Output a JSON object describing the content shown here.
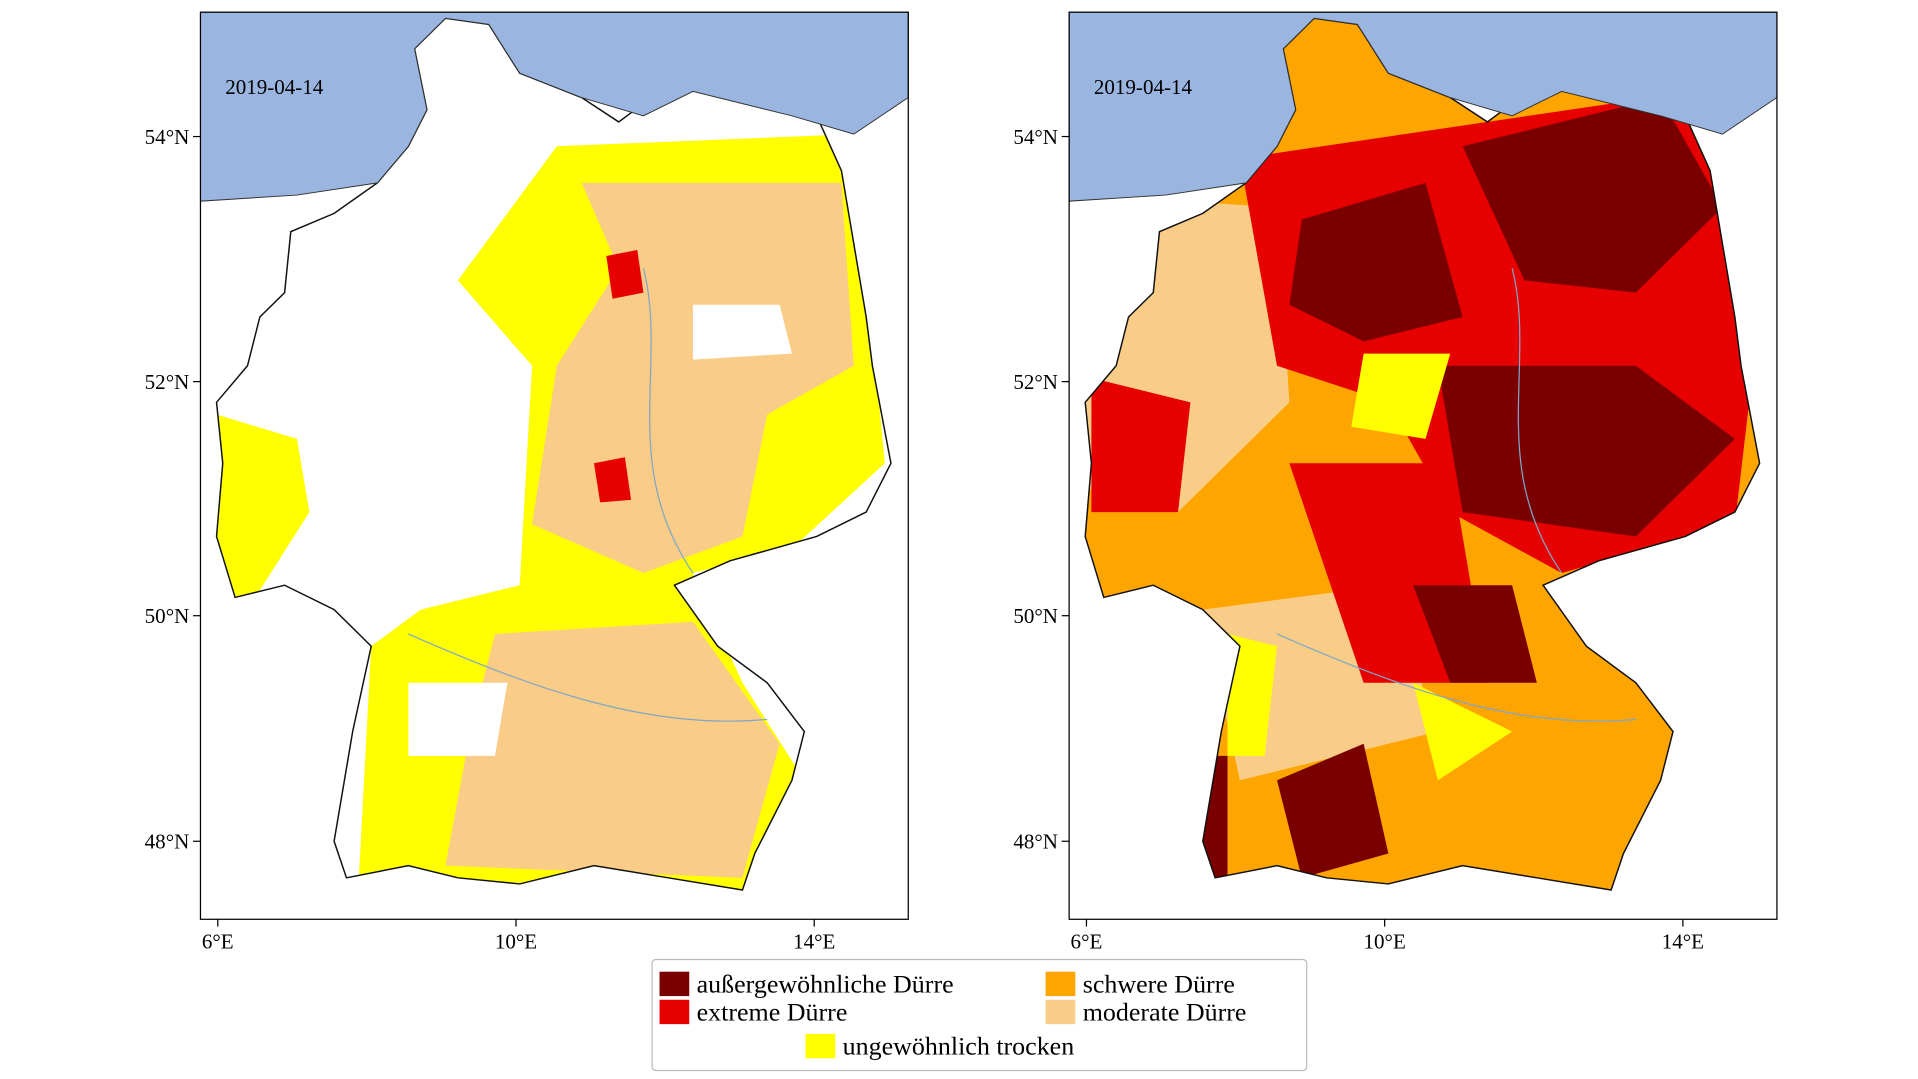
{
  "maps": [
    {
      "date": "2019-04-14",
      "lat_labels": [
        "54°N",
        "52°N",
        "50°N",
        "48°N"
      ],
      "lon_labels": [
        "6°E",
        "10°E",
        "14°E"
      ]
    },
    {
      "date": "2019-04-14",
      "lat_labels": [
        "54°N",
        "52°N",
        "50°N",
        "48°N"
      ],
      "lon_labels": [
        "6°E",
        "10°E",
        "14°E"
      ]
    }
  ],
  "legend": {
    "items": [
      {
        "label": "außergewöhnliche Dürre",
        "color": "#7a0000"
      },
      {
        "label": "extreme Dürre",
        "color": "#e60000"
      },
      {
        "label": "schwere Dürre",
        "color": "#ffa500"
      },
      {
        "label": "moderate Dürre",
        "color": "#f9cc88"
      },
      {
        "label": "ungewöhnlich trocken",
        "color": "#ffff00"
      }
    ]
  }
}
